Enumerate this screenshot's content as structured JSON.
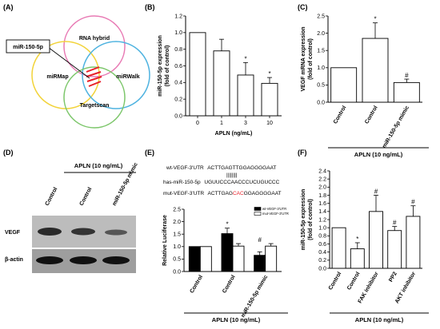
{
  "panels": {
    "A": {
      "label": "(A)",
      "callout": "miR-150-5p",
      "sets": [
        "RNA hybrid",
        "miRMap",
        "miRWalk",
        "Targetscan"
      ]
    },
    "D": {
      "label": "(D)",
      "group_label": "APLN (10 ng/mL)",
      "lanes": [
        "Control",
        "Control",
        "miR-150-5p mimic"
      ],
      "rows": [
        "VEGF",
        "β-actin"
      ]
    },
    "E_seq": {
      "wt_label": "wt-VEGF-3'UTR",
      "wt_seq": "ACTTGAGTTGGAGGGGAAT",
      "mir_label": "has-miR-150-5p",
      "mir_seq": "UGUUCCCAACCCUCUGUCCC",
      "mut_label": "mut-VEGF-3'UTR",
      "mut_seq_a": "ACTTGAG",
      "mut_seq_b": "CAC",
      "mut_seq_c": "GGAGGGGAAT",
      "pairing": "||||||||"
    }
  },
  "colors": {
    "bar": "#ffffff",
    "bar_dark": "#000000",
    "mutant_highlight": "#e8212a",
    "red_lines": "#e8212a"
  },
  "chart_data": [
    {
      "panel": "(B)",
      "type": "bar",
      "categories": [
        "0",
        "1",
        "3",
        "10"
      ],
      "values": [
        1.0,
        0.78,
        0.49,
        0.39
      ],
      "errors": [
        0.0,
        0.14,
        0.15,
        0.07
      ],
      "significance": [
        "",
        "",
        "*",
        "*"
      ],
      "ylabel": "miR-150-5p expression (fold of control)",
      "xlabel": "APLN (ng/mL)",
      "ylim": [
        0.0,
        1.2
      ],
      "yticks": [
        "0.0",
        "0.2",
        "0.4",
        "0.6",
        "0.8",
        "1.0",
        "1.2"
      ]
    },
    {
      "panel": "(C)",
      "type": "bar",
      "categories": [
        "Control",
        "Control",
        "miR-150-5p mimic"
      ],
      "values": [
        1.0,
        1.85,
        0.57
      ],
      "errors": [
        0.0,
        0.45,
        0.1
      ],
      "significance": [
        "",
        "*",
        "#"
      ],
      "ylabel": "VEGF mRNA expression (fold of control)",
      "group_label": "APLN (10 ng/mL)",
      "ylim": [
        0.0,
        2.5
      ],
      "yticks": [
        "0.0",
        "0.5",
        "1.0",
        "1.5",
        "2.0",
        "2.5"
      ]
    },
    {
      "panel": "(E)",
      "type": "bar",
      "categories": [
        "Control",
        "Control",
        "miR-150-5p mimic"
      ],
      "series": [
        {
          "name": "wt-VEGF-3'UTR",
          "values": [
            1.0,
            1.52,
            0.65
          ],
          "errors": [
            0.0,
            0.22,
            0.14
          ]
        },
        {
          "name": "mut-VEGF-3'UTR",
          "values": [
            1.0,
            1.02,
            1.02
          ],
          "errors": [
            0.0,
            0.1,
            0.1
          ]
        }
      ],
      "significance": [
        "",
        "*",
        "#"
      ],
      "ylabel": "Relative Luciferase",
      "group_label": "APLN (10 ng/mL)",
      "ylim": [
        0.0,
        2.5
      ],
      "yticks": [
        "0.0",
        "0.5",
        "1.0",
        "1.5",
        "2.0",
        "2.5"
      ],
      "legend": "top-right"
    },
    {
      "panel": "(F)",
      "type": "bar",
      "categories": [
        "Control",
        "Control",
        "FAK inhibitor",
        "PP2",
        "AKT inhibitor"
      ],
      "values": [
        1.0,
        0.48,
        1.4,
        0.93,
        1.28
      ],
      "errors": [
        0.0,
        0.15,
        0.4,
        0.1,
        0.26
      ],
      "significance": [
        "",
        "*",
        "#",
        "#",
        "#"
      ],
      "ylabel": "miR-150-5p expression (fold of control)",
      "group_label": "APLN (10 ng/mL)",
      "ylim": [
        0.0,
        2.4
      ],
      "yticks": [
        "0.0",
        "0.2",
        "0.4",
        "0.6",
        "0.8",
        "1.0",
        "1.2",
        "1.4",
        "1.6",
        "1.8",
        "2.0",
        "2.2",
        "2.4"
      ]
    }
  ]
}
